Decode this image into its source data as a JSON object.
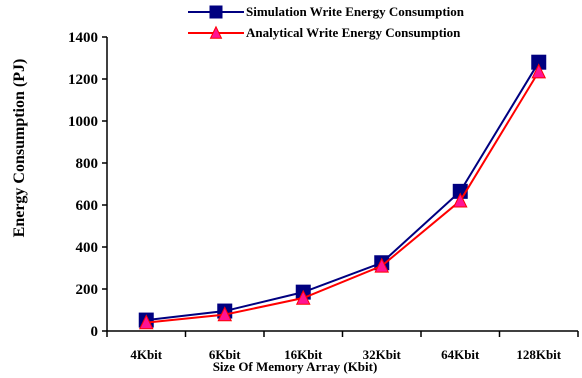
{
  "chart_data": {
    "type": "line",
    "categories": [
      "4Kbit",
      "6Kbit",
      "16Kbit",
      "32Kbit",
      "64Kbit",
      "128Kbit"
    ],
    "series": [
      {
        "name": "Simulation Write Energy Consumption",
        "values": [
          52,
          95,
          185,
          325,
          665,
          1280
        ],
        "color": "#000080",
        "marker": "square"
      },
      {
        "name": "Analytical Write Energy Consumption",
        "values": [
          40,
          78,
          157,
          310,
          620,
          1235
        ],
        "color": "#ff0000",
        "marker": "triangle",
        "marker_fill": "#ff1493"
      }
    ],
    "xlabel": "Size Of Memory Array (Kbit)",
    "ylabel": "Energy Consumption (PJ)",
    "ylim": [
      0,
      1400
    ],
    "yticks": [
      0,
      200,
      400,
      600,
      800,
      1000,
      1200,
      1400
    ],
    "grid": false,
    "legend_position": "top"
  }
}
